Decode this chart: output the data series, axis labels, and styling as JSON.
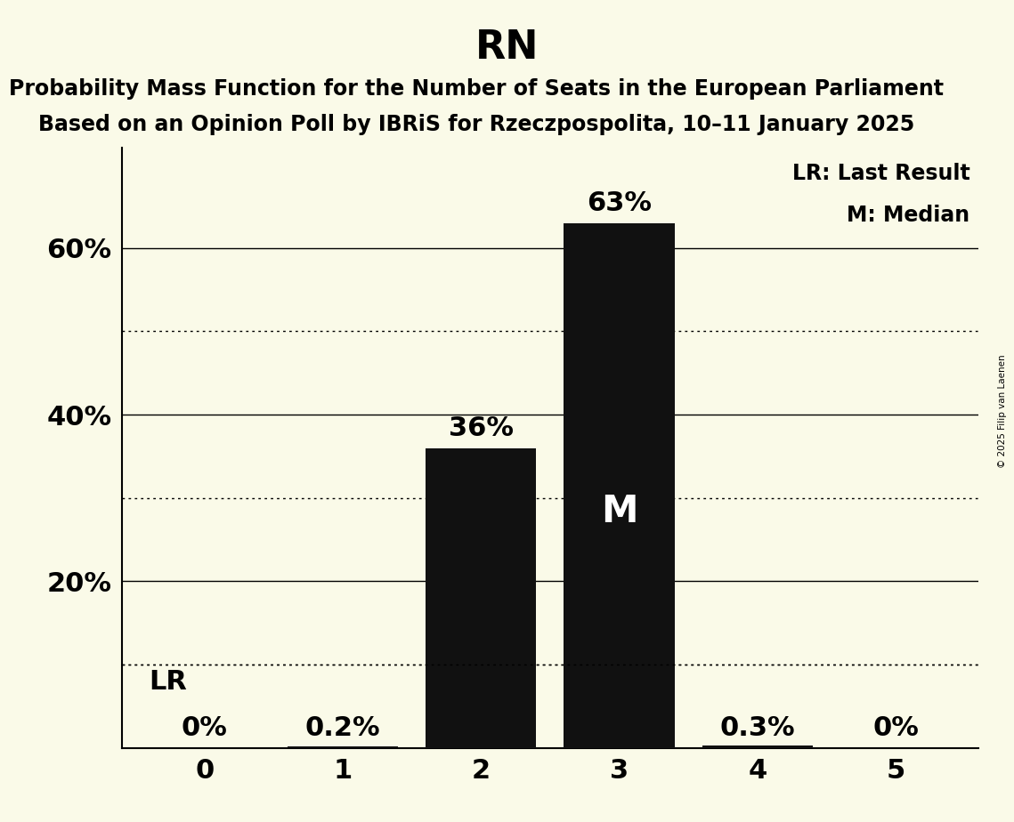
{
  "title": "RN",
  "subtitle_line1": "Probability Mass Function for the Number of Seats in the European Parliament",
  "subtitle_line2": "Based on an Opinion Poll by IBRiS for Rzeczpospolita, 10–11 January 2025",
  "copyright": "© 2025 Filip van Laenen",
  "categories": [
    0,
    1,
    2,
    3,
    4,
    5
  ],
  "values": [
    0.0,
    0.002,
    0.36,
    0.63,
    0.003,
    0.0
  ],
  "bar_color": "#111111",
  "background_color": "#fafae8",
  "ylabel_ticks": [
    0.2,
    0.4,
    0.6
  ],
  "ylabel_tick_labels": [
    "20%",
    "40%",
    "60%"
  ],
  "dotted_lines": [
    0.1,
    0.3,
    0.5
  ],
  "solid_lines": [
    0.2,
    0.4,
    0.6
  ],
  "bar_labels": [
    "0%",
    "0.2%",
    "36%",
    "63%",
    "0.3%",
    "0%"
  ],
  "median_seat": 3,
  "lr_value": 0.1,
  "legend_lr": "LR: Last Result",
  "legend_m": "M: Median",
  "ylim": [
    0,
    0.72
  ],
  "title_fontsize": 32,
  "subtitle_fontsize": 17,
  "tick_fontsize": 22,
  "bar_label_fontsize": 22,
  "legend_fontsize": 17,
  "m_fontsize": 30,
  "lr_label_fontsize": 22
}
